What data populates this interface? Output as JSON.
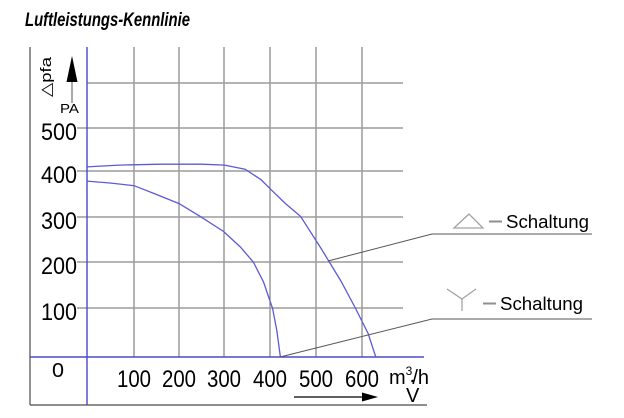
{
  "title": "Luftleistungs-Kennlinie",
  "y_axis": {
    "rotated_label": "△pfa",
    "unit": "PA",
    "ticks": [
      "500",
      "400",
      "300",
      "200",
      "100"
    ],
    "origin": "0"
  },
  "x_axis": {
    "ticks": [
      "100",
      "200",
      "300",
      "400",
      "500",
      "600"
    ],
    "unit_base": "m",
    "unit_exp": "3",
    "unit_rest": "/h",
    "flow_symbol": "V"
  },
  "legend": {
    "delta_label": "Schaltung",
    "star_label": "Schaltung"
  },
  "colors": {
    "curve": "#5b5bd6",
    "axis_blue": "#4a4acc",
    "grid_horizontal": "#9c9c9c",
    "grid_vertical": "#6a6a6a",
    "border": "#4a4a4a",
    "leader": "#555555",
    "legend_symbol": "#a3a3a3",
    "text": "#000000"
  },
  "chart_data": {
    "type": "line",
    "title": "Luftleistungs-Kennlinie",
    "xlabel": "V (m3/h)",
    "ylabel": "pfa (PA)",
    "xlim": [
      0,
      700
    ],
    "ylim": [
      0,
      600
    ],
    "x_ticks": [
      0,
      100,
      200,
      300,
      400,
      500,
      600
    ],
    "y_ticks": [
      0,
      100,
      200,
      300,
      400,
      500,
      600
    ],
    "grid": true,
    "legend_position": "right",
    "series": [
      {
        "name": "Delta-Schaltung (△)",
        "points": [
          [
            0,
            415
          ],
          [
            70,
            419
          ],
          [
            160,
            421
          ],
          [
            250,
            421
          ],
          [
            300,
            419
          ],
          [
            345,
            410
          ],
          [
            380,
            387
          ],
          [
            400,
            367
          ],
          [
            433,
            335
          ],
          [
            466,
            307
          ],
          [
            510,
            238
          ],
          [
            554,
            166
          ],
          [
            586,
            106
          ],
          [
            613,
            52
          ],
          [
            630,
            0
          ]
        ]
      },
      {
        "name": "Stern-Schaltung (Y)",
        "points": [
          [
            0,
            384
          ],
          [
            50,
            380
          ],
          [
            103,
            374
          ],
          [
            149,
            356
          ],
          [
            201,
            335
          ],
          [
            247,
            307
          ],
          [
            298,
            274
          ],
          [
            335,
            240
          ],
          [
            363,
            207
          ],
          [
            385,
            164
          ],
          [
            405,
            106
          ],
          [
            414,
            58
          ],
          [
            422,
            0
          ]
        ]
      }
    ]
  }
}
